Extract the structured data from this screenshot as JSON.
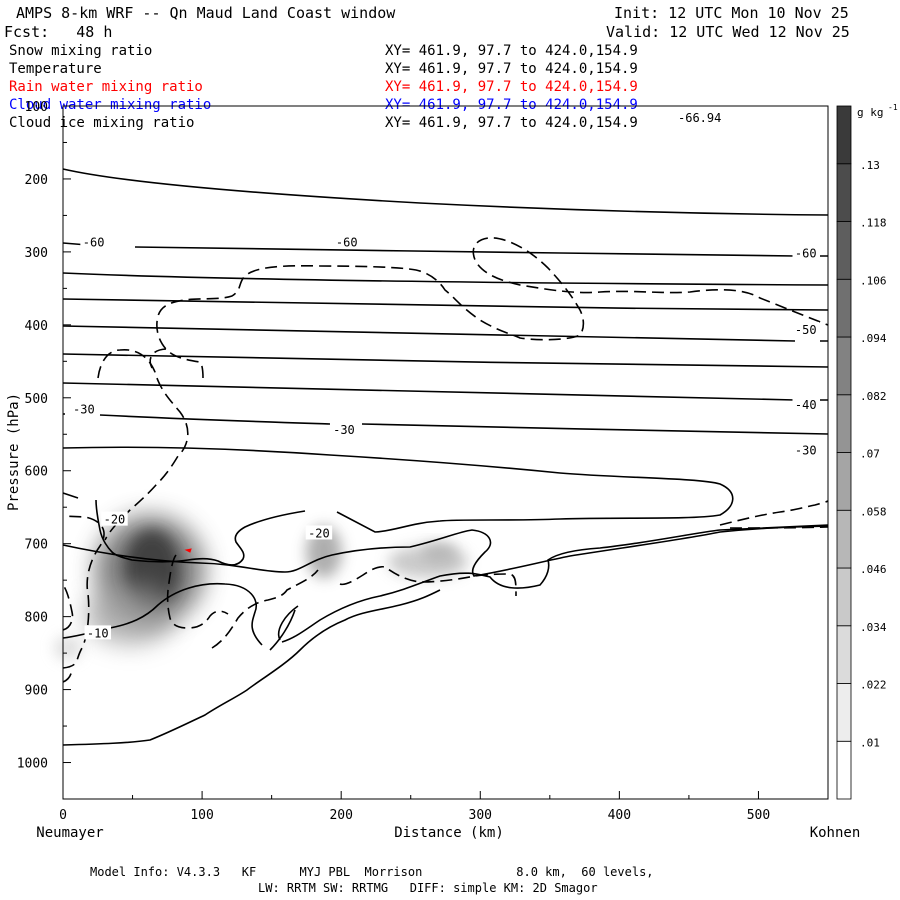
{
  "header": {
    "title": "AMPS 8-km WRF -- Qn Maud Land Coast window",
    "init": "Init: 12 UTC Mon 10 Nov 25",
    "fcst": "Fcst:   48 h",
    "valid": "Valid: 12 UTC Wed 12 Nov 25"
  },
  "fields": [
    {
      "name": "Snow mixing ratio",
      "xy": "XY= 461.9, 97.7 to 424.0,154.9",
      "color": "#000000"
    },
    {
      "name": "Temperature",
      "xy": "XY= 461.9, 97.7 to 424.0,154.9",
      "color": "#000000"
    },
    {
      "name": "Rain water mixing ratio",
      "xy": "XY= 461.9, 97.7 to 424.0,154.9",
      "color": "#ff0000"
    },
    {
      "name": "Cloud water mixing ratio",
      "xy": "XY= 461.9, 97.7 to 424.0,154.9",
      "color": "#0000ff"
    },
    {
      "name": "Cloud ice mixing ratio",
      "xy": "XY= 461.9, 97.7 to 424.0,154.9",
      "color": "#000000"
    }
  ],
  "top_right_value": "-66.94",
  "footer": {
    "line1": "Model Info: V4.3.3   KF      MYJ PBL  Morrison             8.0 km,  60 levels,",
    "line2": "LW: RRTM SW: RRTMG   DIFF: simple KM: 2D Smagor"
  },
  "colorbar": {
    "unit": "g kg",
    "unit_exp": "-1",
    "levels": [
      ".01",
      ".022",
      ".034",
      ".046",
      ".058",
      ".07",
      ".082",
      ".094",
      ".106",
      ".118",
      ".13"
    ]
  },
  "chart_data": {
    "type": "contour cross-section",
    "xlabel": "Distance (km)",
    "ylabel": "Pressure (hPa)",
    "xlim": [
      0,
      550
    ],
    "ylim": [
      1050,
      100
    ],
    "x_ticks": [
      "0",
      "100",
      "200",
      "300",
      "400",
      "500"
    ],
    "y_ticks": [
      "200",
      "300",
      "400",
      "500",
      "600",
      "700",
      "800",
      "900",
      "1000"
    ],
    "left_endpoint": "Neumayer",
    "right_endpoint": "Kohnen",
    "temperature_contour_labels": [
      {
        "text": "-60",
        "x": 22,
        "p": 287
      },
      {
        "text": "-60",
        "x": 204,
        "p": 287
      },
      {
        "text": "-60",
        "x": 534,
        "p": 302
      },
      {
        "text": "-50",
        "x": 534,
        "p": 407
      },
      {
        "text": "-40",
        "x": 534,
        "p": 510
      },
      {
        "text": "-30",
        "x": 15,
        "p": 516
      },
      {
        "text": "-30",
        "x": 202,
        "p": 544
      },
      {
        "text": "-30",
        "x": 534,
        "p": 572
      },
      {
        "text": "-20",
        "x": 37,
        "p": 667
      },
      {
        "text": "-20",
        "x": 184,
        "p": 686
      },
      {
        "text": "-10",
        "x": 25,
        "p": 823
      }
    ],
    "snow_maxima": [
      {
        "x": 65,
        "p": 740,
        "value": 0.13
      },
      {
        "x": 187,
        "p": 720,
        "value": 0.07
      },
      {
        "x": 262,
        "p": 740,
        "value": 0.06
      }
    ]
  }
}
